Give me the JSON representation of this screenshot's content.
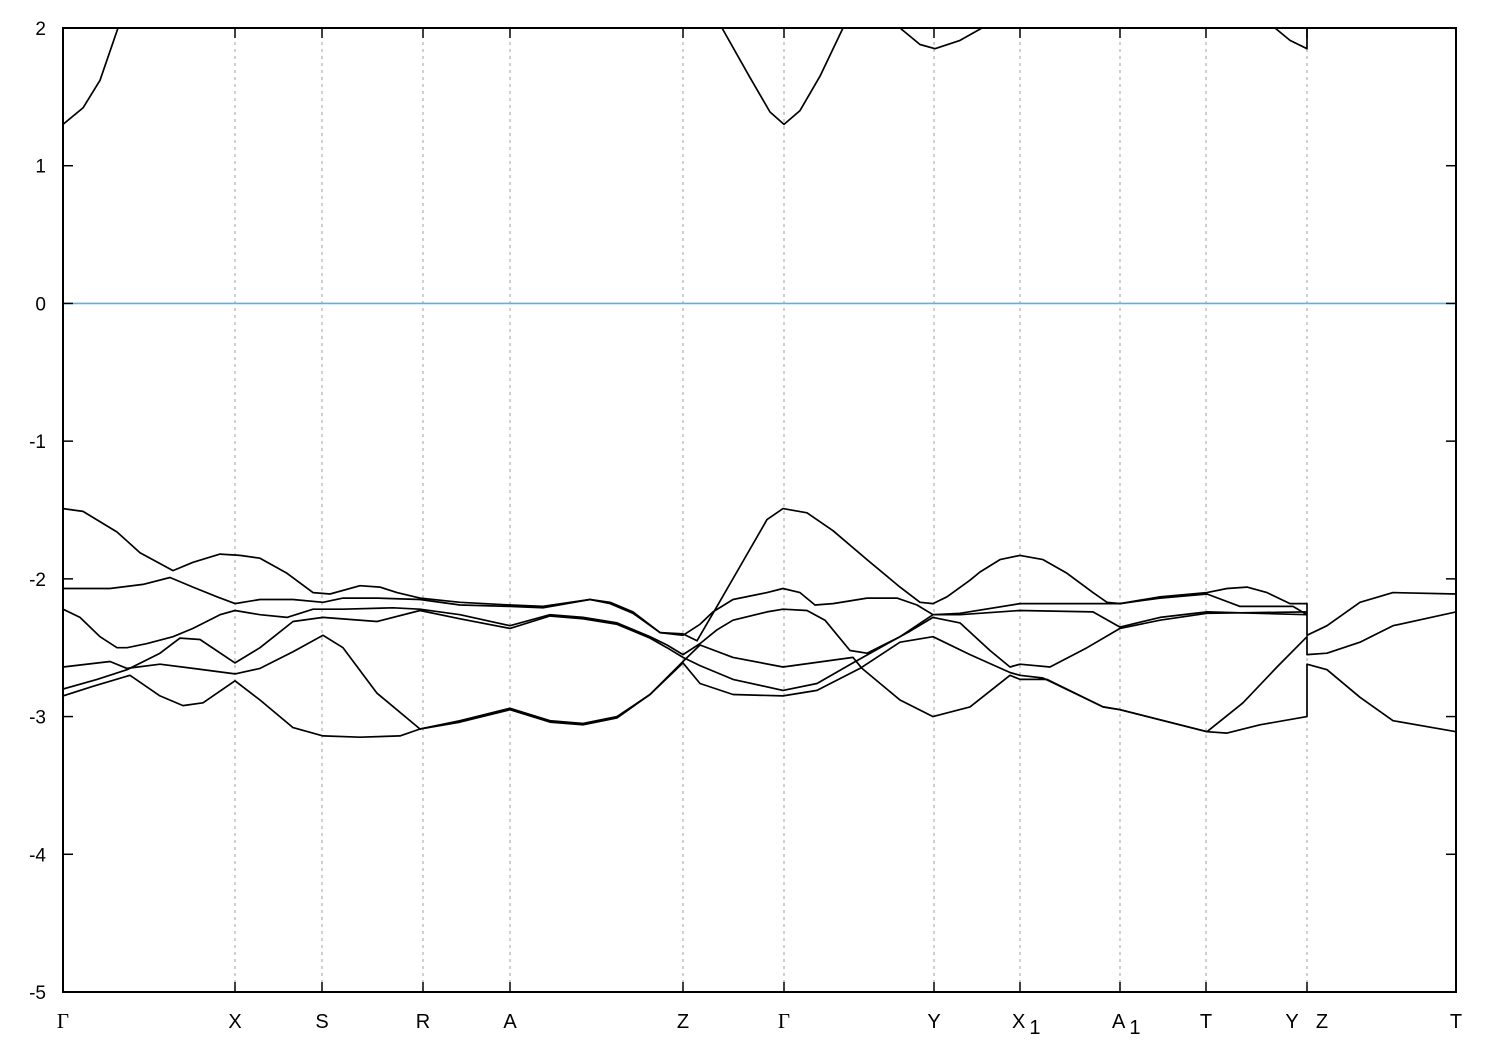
{
  "chart_data": {
    "type": "line",
    "title": "",
    "xlabel": "",
    "ylabel": "",
    "ylim": [
      -5,
      2
    ],
    "xlim": [
      0,
      13.93
    ],
    "grid": "vertical dashed lines at high-symmetry points",
    "yticks": [
      2,
      1,
      0,
      -1,
      -2,
      -3,
      -4,
      -5
    ],
    "kpoints": [
      {
        "label": "Γ",
        "sub": "",
        "k": 0
      },
      {
        "label": "X",
        "sub": "",
        "k": 1.72
      },
      {
        "label": "S",
        "sub": "",
        "k": 2.59
      },
      {
        "label": "R",
        "sub": "",
        "k": 3.6
      },
      {
        "label": "A",
        "sub": "",
        "k": 4.47
      },
      {
        "label": "Z",
        "sub": "",
        "k": 6.2
      },
      {
        "label": "Γ",
        "sub": "",
        "k": 7.21
      },
      {
        "label": "Y",
        "sub": "",
        "k": 8.71
      },
      {
        "label": "X",
        "sub": "1",
        "k": 9.57
      },
      {
        "label": "A",
        "sub": "1",
        "k": 10.57
      },
      {
        "label": "T",
        "sub": "",
        "k": 11.43
      },
      {
        "label": "Y",
        "sub": "",
        "k": 12.44
      },
      {
        "label": "Z",
        "sub": "",
        "k": 12.44
      },
      {
        "label": "T",
        "sub": "",
        "k": 13.93
      }
    ],
    "fermi_level": {
      "value": 0,
      "color": "#56b4e9"
    },
    "band_color": "#000000",
    "conduction_segments": [
      [
        [
          0,
          1.3
        ],
        [
          0.2,
          1.42
        ],
        [
          0.37,
          1.62
        ],
        [
          0.55,
          2.0
        ]
      ],
      [
        [
          6.59,
          2.0
        ],
        [
          6.87,
          1.64
        ],
        [
          7.07,
          1.39
        ],
        [
          7.21,
          1.3
        ],
        [
          7.37,
          1.4
        ],
        [
          7.57,
          1.65
        ],
        [
          7.8,
          2.0
        ]
      ],
      [
        [
          8.37,
          2.0
        ],
        [
          8.57,
          1.88
        ],
        [
          8.72,
          1.85
        ],
        [
          8.97,
          1.91
        ],
        [
          9.19,
          2.0
        ]
      ],
      [
        [
          12.12,
          2.0
        ],
        [
          12.27,
          1.91
        ],
        [
          12.44,
          1.85
        ],
        [
          12.44,
          2.0
        ]
      ]
    ],
    "valence_bands": [
      [
        [
          0,
          -1.49
        ],
        [
          0.2,
          -1.51
        ],
        [
          0.54,
          -1.66
        ],
        [
          0.77,
          -1.81
        ],
        [
          1.1,
          -1.94
        ],
        [
          1.3,
          -1.88
        ],
        [
          1.57,
          -1.82
        ],
        [
          1.77,
          -1.83
        ],
        [
          1.97,
          -1.85
        ],
        [
          2.24,
          -1.96
        ],
        [
          2.5,
          -2.1
        ],
        [
          2.67,
          -2.11
        ],
        [
          2.97,
          -2.05
        ],
        [
          3.17,
          -2.06
        ],
        [
          3.34,
          -2.1
        ],
        [
          3.57,
          -2.14
        ],
        [
          3.97,
          -2.17
        ],
        [
          4.47,
          -2.19
        ],
        [
          4.8,
          -2.2
        ],
        [
          5.27,
          -2.15
        ],
        [
          5.47,
          -2.17
        ],
        [
          5.7,
          -2.24
        ],
        [
          5.97,
          -2.39
        ],
        [
          6.2,
          -2.4
        ],
        [
          6.34,
          -2.45
        ],
        [
          6.5,
          -2.25
        ],
        [
          6.77,
          -1.91
        ],
        [
          7.04,
          -1.57
        ],
        [
          7.2,
          -1.49
        ],
        [
          7.44,
          -1.52
        ],
        [
          7.7,
          -1.65
        ],
        [
          8.04,
          -1.86
        ],
        [
          8.37,
          -2.06
        ],
        [
          8.57,
          -2.17
        ],
        [
          8.7,
          -2.18
        ],
        [
          8.84,
          -2.13
        ],
        [
          9.07,
          -2.01
        ],
        [
          9.17,
          -1.95
        ],
        [
          9.37,
          -1.86
        ],
        [
          9.57,
          -1.83
        ],
        [
          9.8,
          -1.86
        ],
        [
          10.04,
          -1.96
        ],
        [
          10.3,
          -2.1
        ],
        [
          10.44,
          -2.17
        ],
        [
          10.57,
          -2.18
        ],
        [
          10.97,
          -2.13
        ],
        [
          11.44,
          -2.1
        ],
        [
          11.64,
          -2.07
        ],
        [
          11.84,
          -2.06
        ],
        [
          12.04,
          -2.1
        ],
        [
          12.27,
          -2.18
        ],
        [
          12.44,
          -2.18
        ],
        [
          12.44,
          -2.41
        ],
        [
          12.64,
          -2.34
        ],
        [
          12.97,
          -2.17
        ],
        [
          13.3,
          -2.1
        ],
        [
          13.93,
          -2.11
        ]
      ],
      [
        [
          0,
          -2.07
        ],
        [
          0.47,
          -2.07
        ],
        [
          0.8,
          -2.04
        ],
        [
          1.07,
          -1.99
        ],
        [
          1.3,
          -2.06
        ],
        [
          1.54,
          -2.13
        ],
        [
          1.72,
          -2.18
        ],
        [
          1.97,
          -2.15
        ],
        [
          2.3,
          -2.15
        ],
        [
          2.6,
          -2.17
        ],
        [
          2.8,
          -2.14
        ],
        [
          3.14,
          -2.14
        ],
        [
          3.57,
          -2.15
        ],
        [
          3.97,
          -2.19
        ],
        [
          4.47,
          -2.2
        ],
        [
          4.8,
          -2.21
        ],
        [
          5.27,
          -2.15
        ],
        [
          5.47,
          -2.18
        ],
        [
          5.7,
          -2.25
        ],
        [
          5.97,
          -2.39
        ],
        [
          6.2,
          -2.41
        ],
        [
          6.37,
          -2.33
        ],
        [
          6.5,
          -2.24
        ],
        [
          6.7,
          -2.15
        ],
        [
          7.04,
          -2.1
        ],
        [
          7.2,
          -2.07
        ],
        [
          7.37,
          -2.1
        ],
        [
          7.52,
          -2.19
        ],
        [
          7.7,
          -2.18
        ],
        [
          8.04,
          -2.14
        ],
        [
          8.34,
          -2.14
        ],
        [
          8.54,
          -2.19
        ],
        [
          8.7,
          -2.26
        ],
        [
          8.97,
          -2.25
        ],
        [
          9.57,
          -2.18
        ],
        [
          10.57,
          -2.18
        ],
        [
          10.97,
          -2.14
        ],
        [
          11.44,
          -2.11
        ],
        [
          11.77,
          -2.2
        ],
        [
          12.3,
          -2.2
        ],
        [
          12.44,
          -2.26
        ]
      ],
      [
        [
          0,
          -2.22
        ],
        [
          0.17,
          -2.28
        ],
        [
          0.37,
          -2.42
        ],
        [
          0.54,
          -2.5
        ],
        [
          0.64,
          -2.5
        ],
        [
          0.84,
          -2.47
        ],
        [
          1.1,
          -2.42
        ],
        [
          1.3,
          -2.36
        ],
        [
          1.57,
          -2.26
        ],
        [
          1.72,
          -2.23
        ],
        [
          1.97,
          -2.26
        ],
        [
          2.24,
          -2.28
        ],
        [
          2.5,
          -2.22
        ],
        [
          2.8,
          -2.22
        ],
        [
          3.3,
          -2.21
        ],
        [
          3.57,
          -2.22
        ],
        [
          3.97,
          -2.26
        ],
        [
          4.47,
          -2.34
        ],
        [
          4.87,
          -2.26
        ],
        [
          5.2,
          -2.28
        ],
        [
          5.54,
          -2.32
        ],
        [
          5.87,
          -2.42
        ],
        [
          6.04,
          -2.48
        ],
        [
          6.2,
          -2.55
        ],
        [
          6.37,
          -2.47
        ],
        [
          6.54,
          -2.37
        ],
        [
          6.7,
          -2.3
        ],
        [
          7.04,
          -2.24
        ],
        [
          7.2,
          -2.22
        ],
        [
          7.44,
          -2.23
        ],
        [
          7.62,
          -2.3
        ],
        [
          7.87,
          -2.52
        ],
        [
          8.04,
          -2.54
        ],
        [
          8.37,
          -2.42
        ],
        [
          8.7,
          -2.26
        ],
        [
          8.97,
          -2.26
        ],
        [
          9.57,
          -2.23
        ],
        [
          10.3,
          -2.24
        ],
        [
          10.57,
          -2.35
        ],
        [
          10.97,
          -2.28
        ],
        [
          11.44,
          -2.24
        ],
        [
          12.44,
          -2.26
        ]
      ],
      [
        [
          0,
          -2.8
        ],
        [
          0.34,
          -2.73
        ],
        [
          0.64,
          -2.66
        ],
        [
          0.97,
          -2.54
        ],
        [
          1.17,
          -2.43
        ],
        [
          1.37,
          -2.44
        ],
        [
          1.72,
          -2.61
        ],
        [
          1.97,
          -2.5
        ],
        [
          2.3,
          -2.31
        ],
        [
          2.6,
          -2.28
        ],
        [
          3.14,
          -2.31
        ],
        [
          3.57,
          -2.23
        ],
        [
          3.97,
          -2.29
        ],
        [
          4.47,
          -2.36
        ],
        [
          4.87,
          -2.27
        ],
        [
          5.2,
          -2.29
        ],
        [
          5.54,
          -2.33
        ],
        [
          5.87,
          -2.43
        ],
        [
          6.04,
          -2.5
        ],
        [
          6.2,
          -2.57
        ],
        [
          6.37,
          -2.63
        ],
        [
          6.7,
          -2.73
        ],
        [
          7.2,
          -2.81
        ],
        [
          7.54,
          -2.76
        ],
        [
          7.9,
          -2.61
        ],
        [
          8.17,
          -2.5
        ],
        [
          8.47,
          -2.38
        ],
        [
          8.7,
          -2.28
        ],
        [
          8.97,
          -2.32
        ],
        [
          9.27,
          -2.52
        ],
        [
          9.47,
          -2.64
        ],
        [
          9.57,
          -2.62
        ],
        [
          9.87,
          -2.64
        ],
        [
          10.24,
          -2.5
        ],
        [
          10.57,
          -2.36
        ],
        [
          10.97,
          -2.3
        ],
        [
          11.44,
          -2.25
        ],
        [
          12.44,
          -2.24
        ]
      ],
      [
        [
          0,
          -2.64
        ],
        [
          0.47,
          -2.6
        ],
        [
          0.64,
          -2.65
        ],
        [
          0.97,
          -2.62
        ],
        [
          1.3,
          -2.65
        ],
        [
          1.72,
          -2.69
        ],
        [
          1.97,
          -2.65
        ],
        [
          2.3,
          -2.53
        ],
        [
          2.6,
          -2.41
        ],
        [
          2.8,
          -2.5
        ],
        [
          3.14,
          -2.83
        ],
        [
          3.57,
          -3.09
        ],
        [
          3.97,
          -3.03
        ],
        [
          4.47,
          -2.94
        ],
        [
          4.87,
          -3.03
        ],
        [
          5.2,
          -3.05
        ],
        [
          5.54,
          -3.0
        ],
        [
          5.87,
          -2.84
        ],
        [
          6.2,
          -2.6
        ],
        [
          6.37,
          -2.48
        ],
        [
          6.7,
          -2.57
        ],
        [
          7.2,
          -2.64
        ],
        [
          7.7,
          -2.59
        ],
        [
          7.9,
          -2.57
        ],
        [
          7.99,
          -2.65
        ],
        [
          8.37,
          -2.88
        ],
        [
          8.7,
          -3.0
        ],
        [
          9.07,
          -2.93
        ],
        [
          9.47,
          -2.7
        ],
        [
          9.57,
          -2.73
        ],
        [
          9.84,
          -2.73
        ],
        [
          10.4,
          -2.93
        ],
        [
          10.57,
          -2.95
        ],
        [
          11.44,
          -3.11
        ],
        [
          11.64,
          -3.12
        ],
        [
          11.97,
          -3.06
        ],
        [
          12.44,
          -3.0
        ],
        [
          12.44,
          -2.62
        ],
        [
          12.64,
          -2.66
        ],
        [
          12.97,
          -2.86
        ],
        [
          13.3,
          -3.03
        ],
        [
          13.93,
          -3.11
        ]
      ],
      [
        [
          0,
          -2.85
        ],
        [
          0.3,
          -2.78
        ],
        [
          0.67,
          -2.7
        ],
        [
          0.97,
          -2.85
        ],
        [
          1.2,
          -2.92
        ],
        [
          1.4,
          -2.9
        ],
        [
          1.72,
          -2.74
        ],
        [
          1.97,
          -2.88
        ],
        [
          2.3,
          -3.08
        ],
        [
          2.6,
          -3.14
        ],
        [
          2.97,
          -3.15
        ],
        [
          3.37,
          -3.14
        ],
        [
          3.57,
          -3.09
        ],
        [
          3.97,
          -3.04
        ],
        [
          4.47,
          -2.95
        ],
        [
          4.87,
          -3.04
        ],
        [
          5.2,
          -3.06
        ],
        [
          5.54,
          -3.01
        ],
        [
          5.87,
          -2.84
        ],
        [
          6.2,
          -2.61
        ],
        [
          6.37,
          -2.76
        ],
        [
          6.7,
          -2.84
        ],
        [
          7.2,
          -2.85
        ],
        [
          7.54,
          -2.81
        ],
        [
          7.97,
          -2.65
        ],
        [
          8.37,
          -2.46
        ],
        [
          8.7,
          -2.42
        ],
        [
          9.07,
          -2.55
        ],
        [
          9.47,
          -2.68
        ],
        [
          9.57,
          -2.7
        ],
        [
          9.8,
          -2.72
        ],
        [
          10.4,
          -2.93
        ],
        [
          10.57,
          -2.95
        ],
        [
          11.44,
          -3.11
        ],
        [
          11.8,
          -2.9
        ],
        [
          12.14,
          -2.64
        ],
        [
          12.44,
          -2.42
        ],
        [
          12.44,
          -2.55
        ],
        [
          12.64,
          -2.54
        ],
        [
          12.97,
          -2.46
        ],
        [
          13.3,
          -2.34
        ],
        [
          13.93,
          -2.24
        ]
      ]
    ]
  }
}
